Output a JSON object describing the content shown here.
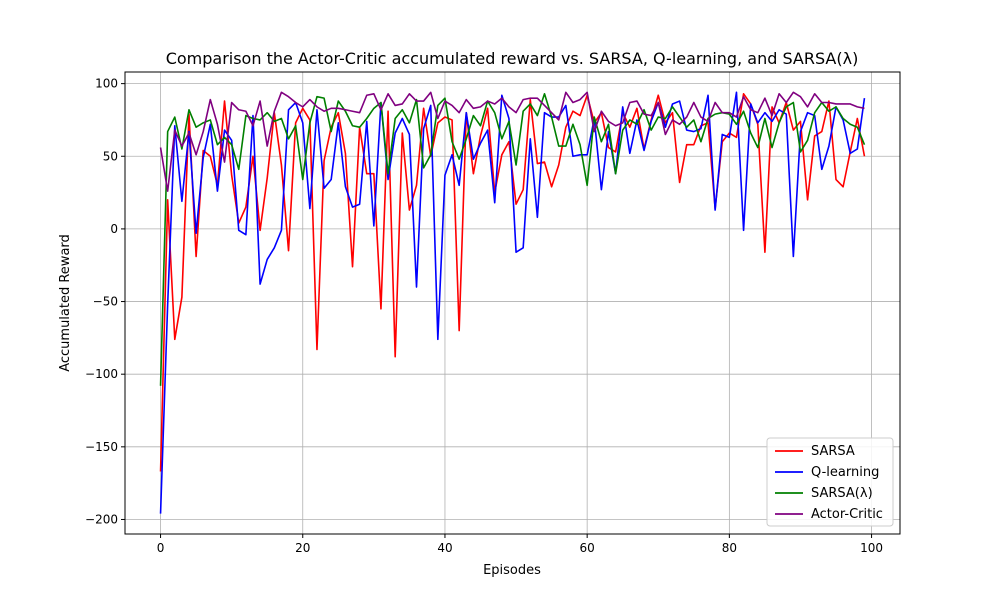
{
  "chart_data": {
    "type": "line",
    "title": "Comparison the Actor-Critic accumulated reward vs. SARSA, Q-learning, and SARSA(λ)",
    "xlabel": "Episodes",
    "ylabel": "Accumulated Reward",
    "xlim": [
      -5,
      104
    ],
    "ylim": [
      -210,
      108
    ],
    "xticks": [
      0,
      20,
      40,
      60,
      80,
      100
    ],
    "yticks": [
      -200,
      -150,
      -100,
      -50,
      0,
      50,
      100
    ],
    "grid": true,
    "legend_position": "lower-right",
    "series": [
      {
        "name": "SARSA",
        "color": "#ff0000",
        "values": [
          -167,
          20,
          -76,
          -47,
          79,
          -19,
          54,
          50,
          30,
          88,
          37,
          4,
          15,
          50,
          -1,
          35,
          80,
          44,
          -15,
          73,
          83,
          75,
          -83,
          47,
          70,
          80,
          52,
          -26,
          70,
          38,
          38,
          -55,
          81,
          -88,
          66,
          13,
          30,
          83,
          50,
          73,
          77,
          75,
          -70,
          80,
          38,
          64,
          83,
          25,
          51,
          60,
          17,
          27,
          89,
          45,
          46,
          29,
          44,
          70,
          81,
          78,
          92,
          73,
          80,
          56,
          53,
          80,
          70,
          83,
          55,
          75,
          92,
          73,
          80,
          32,
          58,
          58,
          71,
          73,
          14,
          60,
          66,
          63,
          93,
          86,
          72,
          -16,
          84,
          73,
          87,
          68,
          74,
          20,
          64,
          67,
          88,
          34,
          29,
          53,
          76,
          50
        ]
      },
      {
        "name": "Q-learning",
        "color": "#0000ff",
        "values": [
          -196,
          -52,
          71,
          19,
          67,
          -3,
          49,
          72,
          26,
          68,
          61,
          -1,
          -4,
          78,
          -38,
          -21,
          -13,
          -1,
          82,
          87,
          73,
          14,
          82,
          28,
          34,
          73,
          29,
          15,
          17,
          74,
          2,
          87,
          34,
          66,
          76,
          65,
          -40,
          69,
          85,
          -76,
          37,
          51,
          30,
          80,
          48,
          59,
          68,
          18,
          92,
          76,
          -16,
          -13,
          62,
          8,
          80,
          77,
          77,
          85,
          50,
          51,
          51,
          76,
          27,
          67,
          38,
          84,
          52,
          75,
          54,
          74,
          87,
          70,
          86,
          88,
          68,
          67,
          69,
          92,
          13,
          65,
          63,
          94,
          -1,
          86,
          73,
          80,
          74,
          82,
          79,
          -19,
          67,
          80,
          78,
          41,
          57,
          84,
          75,
          52,
          55,
          90
        ]
      },
      {
        "name": "SARSA(λ)",
        "color": "#008000",
        "values": [
          -108,
          67,
          77,
          55,
          82,
          70,
          73,
          75,
          58,
          63,
          58,
          41,
          78,
          76,
          75,
          80,
          74,
          76,
          62,
          71,
          34,
          73,
          91,
          90,
          67,
          88,
          81,
          71,
          70,
          76,
          83,
          87,
          38,
          76,
          82,
          73,
          89,
          42,
          51,
          85,
          90,
          60,
          48,
          62,
          78,
          71,
          88,
          80,
          62,
          74,
          44,
          81,
          86,
          78,
          93,
          77,
          57,
          57,
          72,
          58,
          30,
          77,
          60,
          72,
          38,
          68,
          75,
          72,
          82,
          68,
          77,
          76,
          84,
          77,
          70,
          75,
          60,
          76,
          79,
          80,
          79,
          72,
          81,
          66,
          56,
          76,
          56,
          73,
          84,
          87,
          53,
          61,
          80,
          87,
          81,
          84,
          76,
          72,
          70,
          58
        ]
      },
      {
        "name": "Actor-Critic",
        "color": "#800080",
        "values": [
          56,
          26,
          68,
          57,
          66,
          51,
          67,
          89,
          72,
          46,
          87,
          82,
          81,
          71,
          88,
          57,
          81,
          94,
          91,
          87,
          84,
          89,
          84,
          81,
          83,
          83,
          82,
          81,
          80,
          92,
          93,
          82,
          93,
          85,
          86,
          93,
          88,
          88,
          94,
          76,
          88,
          85,
          80,
          89,
          83,
          84,
          88,
          86,
          90,
          84,
          80,
          89,
          90,
          90,
          85,
          80,
          75,
          94,
          87,
          89,
          94,
          67,
          81,
          74,
          71,
          73,
          87,
          88,
          79,
          78,
          87,
          65,
          75,
          72,
          77,
          87,
          77,
          74,
          87,
          80,
          80,
          77,
          91,
          82,
          80,
          90,
          78,
          93,
          87,
          94,
          91,
          84,
          93,
          87,
          87,
          86,
          86,
          86,
          84,
          83
        ]
      }
    ]
  }
}
